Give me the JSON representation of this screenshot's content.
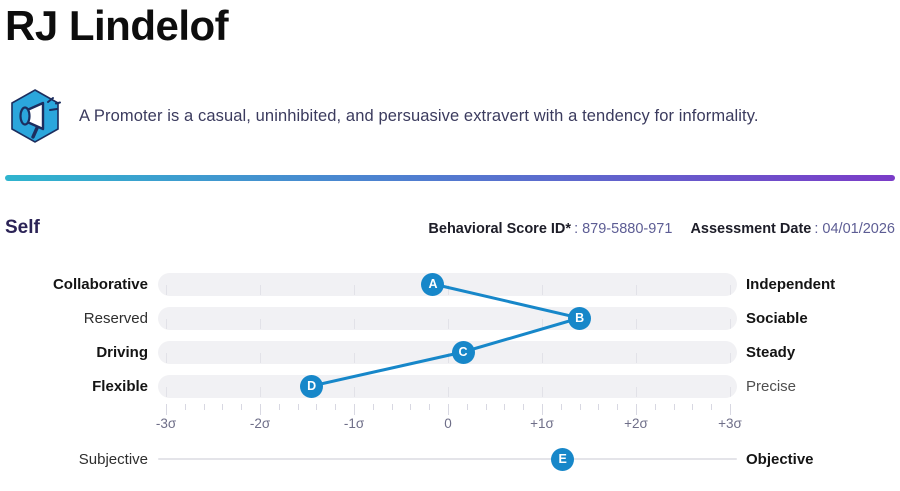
{
  "header": {
    "title": "RJ Lindelof"
  },
  "profile": {
    "icon": "megaphone-icon",
    "description": "A Promoter is a casual, uninhibited, and persuasive extravert with a tendency for informality."
  },
  "divider": {
    "gradient_start": "#2fb4ce",
    "gradient_end": "#7b3cc8"
  },
  "section": {
    "label": "Self",
    "score_id_label": "Behavioral Score ID*",
    "score_id_value": ": 879-5880-971",
    "assessment_date_label": "Assessment Date",
    "assessment_date_value": ": 04/01/2026"
  },
  "chart_data": {
    "type": "scatter",
    "title": "Self behavioral profile",
    "marker_color": "#1787c9",
    "track_color": "#f1f1f4",
    "axis": {
      "tick_labels": [
        "-3σ",
        "-2σ",
        "-1σ",
        "0",
        "+1σ",
        "+2σ",
        "+3σ"
      ],
      "range": [
        -3,
        3
      ],
      "minor_step": 0.2
    },
    "rows": [
      {
        "left": "Collaborative",
        "left_bold": true,
        "right": "Independent",
        "right_bold": true,
        "marker": "A",
        "sigma": -0.16
      },
      {
        "left": "Reserved",
        "left_bold": false,
        "right": "Sociable",
        "right_bold": true,
        "marker": "B",
        "sigma": 1.4
      },
      {
        "left": "Driving",
        "left_bold": true,
        "right": "Steady",
        "right_bold": true,
        "marker": "C",
        "sigma": 0.16
      },
      {
        "left": "Flexible",
        "left_bold": true,
        "right": "Precise",
        "right_bold": false,
        "marker": "D",
        "sigma": -1.45
      }
    ],
    "footer_row": {
      "left": "Subjective",
      "left_bold": false,
      "right": "Objective",
      "right_bold": true,
      "marker": "E",
      "sigma": 1.22
    }
  }
}
